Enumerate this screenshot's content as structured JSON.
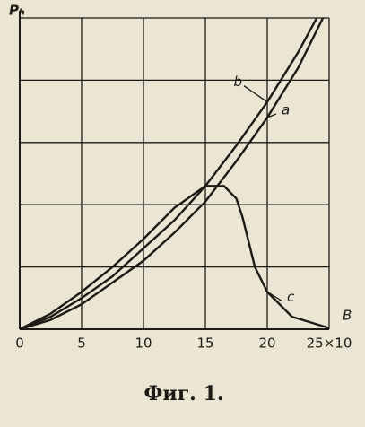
{
  "chart_data": {
    "type": "line",
    "y_label": "Pₕ",
    "x_label": "B",
    "caption": "Фиг. 1.",
    "xlim": [
      0,
      25
    ],
    "ylim": [
      0,
      5
    ],
    "xticks": [
      0,
      5,
      10,
      15,
      20,
      {
        "value": 25,
        "label": "25×10"
      }
    ],
    "ygrid": [
      1,
      2,
      3,
      4,
      5
    ],
    "grid": true,
    "series": [
      {
        "name": "b",
        "color": "#1e1a16",
        "x": [
          0,
          2.5,
          5,
          7.5,
          10,
          12.5,
          15,
          17.5,
          20,
          22.5,
          24
        ],
        "values": [
          0,
          0.2,
          0.5,
          0.85,
          1.3,
          1.75,
          2.3,
          2.95,
          3.65,
          4.45,
          5.0
        ]
      },
      {
        "name": "a",
        "color": "#1e1a16",
        "x": [
          0,
          2.5,
          5,
          7.5,
          10,
          12.5,
          15,
          17.5,
          20,
          22.5,
          24.5
        ],
        "values": [
          0,
          0.15,
          0.4,
          0.75,
          1.1,
          1.55,
          2.05,
          2.7,
          3.4,
          4.2,
          5.0
        ]
      },
      {
        "name": "c",
        "color": "#1e1a16",
        "x": [
          0,
          2.5,
          5,
          7.5,
          10,
          12.5,
          15,
          16.5,
          17.5,
          18,
          19,
          20,
          22,
          25
        ],
        "values": [
          0,
          0.25,
          0.6,
          1.0,
          1.45,
          1.95,
          2.3,
          2.3,
          2.1,
          1.8,
          1.0,
          0.6,
          0.2,
          0.02
        ]
      }
    ]
  }
}
